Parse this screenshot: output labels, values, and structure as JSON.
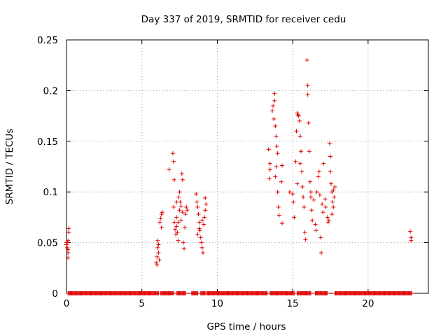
{
  "chart_data": {
    "type": "scatter",
    "title": "Day 337 of 2019, SRMTID for receiver cedu",
    "xlabel": "GPS time / hours",
    "ylabel": "SRMTID / TECUs",
    "xlim": [
      0,
      24
    ],
    "ylim": [
      0,
      0.25
    ],
    "xticks": [
      "0",
      "5",
      "10",
      "15",
      "20"
    ],
    "xtick_values": [
      0,
      5,
      10,
      15,
      20
    ],
    "yticks": [
      "0",
      "0.05",
      "0.1",
      "0.15",
      "0.2",
      "0.25"
    ],
    "ytick_values": [
      0,
      0.05,
      0.1,
      0.15,
      0.2,
      0.25
    ],
    "grid": true,
    "marker": "plus",
    "series_color": "#e00000",
    "points": [
      [
        0.0,
        0.048
      ],
      [
        0.05,
        0.045
      ],
      [
        0.05,
        0.05
      ],
      [
        0.1,
        0.052
      ],
      [
        0.1,
        0.04
      ],
      [
        0.1,
        0.035
      ],
      [
        0.15,
        0.06
      ],
      [
        0.15,
        0.064
      ],
      [
        0.1,
        0.043
      ],
      [
        0.0,
        0.05
      ],
      [
        5.95,
        0.03
      ],
      [
        6.0,
        0.028
      ],
      [
        6.0,
        0.036
      ],
      [
        6.05,
        0.045
      ],
      [
        6.05,
        0.052
      ],
      [
        6.1,
        0.04
      ],
      [
        6.1,
        0.048
      ],
      [
        6.15,
        0.033
      ],
      [
        6.2,
        0.07
      ],
      [
        6.25,
        0.074
      ],
      [
        6.3,
        0.078
      ],
      [
        6.3,
        0.065
      ],
      [
        6.35,
        0.08
      ],
      [
        6.8,
        0.122
      ],
      [
        7.05,
        0.138
      ],
      [
        7.1,
        0.13
      ],
      [
        7.15,
        0.112
      ],
      [
        7.1,
        0.085
      ],
      [
        7.15,
        0.07
      ],
      [
        7.2,
        0.063
      ],
      [
        7.25,
        0.058
      ],
      [
        7.3,
        0.066
      ],
      [
        7.3,
        0.075
      ],
      [
        7.35,
        0.06
      ],
      [
        7.4,
        0.052
      ],
      [
        7.45,
        0.095
      ],
      [
        7.5,
        0.1
      ],
      [
        7.55,
        0.09
      ],
      [
        7.6,
        0.086
      ],
      [
        7.65,
        0.118
      ],
      [
        7.7,
        0.112
      ],
      [
        7.7,
        0.08
      ],
      [
        7.75,
        0.05
      ],
      [
        7.8,
        0.044
      ],
      [
        7.85,
        0.065
      ],
      [
        7.9,
        0.078
      ],
      [
        7.95,
        0.085
      ],
      [
        8.0,
        0.082
      ],
      [
        7.4,
        0.07
      ],
      [
        7.6,
        0.072
      ],
      [
        7.5,
        0.082
      ],
      [
        7.3,
        0.09
      ],
      [
        8.6,
        0.098
      ],
      [
        8.65,
        0.09
      ],
      [
        8.7,
        0.085
      ],
      [
        8.75,
        0.078
      ],
      [
        8.8,
        0.07
      ],
      [
        8.85,
        0.062
      ],
      [
        8.9,
        0.055
      ],
      [
        8.95,
        0.05
      ],
      [
        9.0,
        0.045
      ],
      [
        9.05,
        0.04
      ],
      [
        9.1,
        0.068
      ],
      [
        9.15,
        0.075
      ],
      [
        9.2,
        0.082
      ],
      [
        9.25,
        0.088
      ],
      [
        8.7,
        0.058
      ],
      [
        8.8,
        0.064
      ],
      [
        9.0,
        0.072
      ],
      [
        9.2,
        0.094
      ],
      [
        13.4,
        0.142
      ],
      [
        13.5,
        0.128
      ],
      [
        13.45,
        0.113
      ],
      [
        13.5,
        0.122
      ],
      [
        13.65,
        0.18
      ],
      [
        13.7,
        0.185
      ],
      [
        13.75,
        0.172
      ],
      [
        13.8,
        0.19
      ],
      [
        13.8,
        0.197
      ],
      [
        13.85,
        0.165
      ],
      [
        13.9,
        0.155
      ],
      [
        13.95,
        0.145
      ],
      [
        14.0,
        0.138
      ],
      [
        13.9,
        0.125
      ],
      [
        13.85,
        0.115
      ],
      [
        14.0,
        0.1
      ],
      [
        14.05,
        0.085
      ],
      [
        14.1,
        0.077
      ],
      [
        14.25,
        0.11
      ],
      [
        14.3,
        0.069
      ],
      [
        14.3,
        0.126
      ],
      [
        14.8,
        0.1
      ],
      [
        15.0,
        0.098
      ],
      [
        15.05,
        0.09
      ],
      [
        15.1,
        0.075
      ],
      [
        15.2,
        0.13
      ],
      [
        15.25,
        0.16
      ],
      [
        15.3,
        0.178
      ],
      [
        15.35,
        0.176
      ],
      [
        15.4,
        0.175
      ],
      [
        15.45,
        0.17
      ],
      [
        15.5,
        0.155
      ],
      [
        15.55,
        0.14
      ],
      [
        15.6,
        0.12
      ],
      [
        15.65,
        0.105
      ],
      [
        15.7,
        0.095
      ],
      [
        15.75,
        0.085
      ],
      [
        15.8,
        0.06
      ],
      [
        15.85,
        0.053
      ],
      [
        15.95,
        0.23
      ],
      [
        16.0,
        0.205
      ],
      [
        16.0,
        0.196
      ],
      [
        16.05,
        0.168
      ],
      [
        16.1,
        0.14
      ],
      [
        16.15,
        0.11
      ],
      [
        16.2,
        0.095
      ],
      [
        16.25,
        0.082
      ],
      [
        16.3,
        0.072
      ],
      [
        16.4,
        0.092
      ],
      [
        16.5,
        0.068
      ],
      [
        16.55,
        0.062
      ],
      [
        16.6,
        0.1
      ],
      [
        16.7,
        0.115
      ],
      [
        16.75,
        0.12
      ],
      [
        16.8,
        0.097
      ],
      [
        16.85,
        0.055
      ],
      [
        16.9,
        0.04
      ],
      [
        16.95,
        0.088
      ],
      [
        17.0,
        0.08
      ],
      [
        17.05,
        0.128
      ],
      [
        17.15,
        0.093
      ],
      [
        17.2,
        0.085
      ],
      [
        17.3,
        0.075
      ],
      [
        17.35,
        0.07
      ],
      [
        17.45,
        0.148
      ],
      [
        17.5,
        0.135
      ],
      [
        17.5,
        0.12
      ],
      [
        17.55,
        0.108
      ],
      [
        17.6,
        0.1
      ],
      [
        17.65,
        0.09
      ],
      [
        17.7,
        0.085
      ],
      [
        17.75,
        0.095
      ],
      [
        17.8,
        0.105
      ],
      [
        17.6,
        0.078
      ],
      [
        17.4,
        0.072
      ],
      [
        15.3,
        0.108
      ],
      [
        15.5,
        0.128
      ],
      [
        16.2,
        0.1
      ],
      [
        17.7,
        0.102
      ],
      [
        22.8,
        0.061
      ],
      [
        22.85,
        0.055
      ],
      [
        22.85,
        0.052
      ]
    ],
    "zero_ranges_hours": [
      [
        0.1,
        6.1
      ],
      [
        6.25,
        7.1
      ],
      [
        7.3,
        7.9
      ],
      [
        8.3,
        8.7
      ],
      [
        8.9,
        9.2
      ],
      [
        9.3,
        13.3
      ],
      [
        13.5,
        15.1
      ],
      [
        15.3,
        16.2
      ],
      [
        16.5,
        17.3
      ],
      [
        17.8,
        22.9
      ]
    ]
  }
}
